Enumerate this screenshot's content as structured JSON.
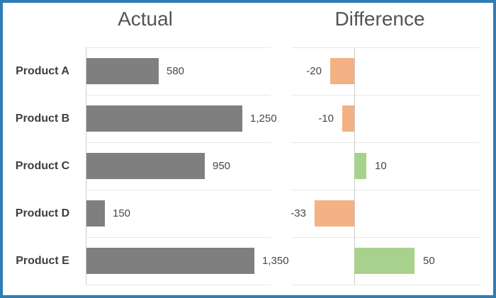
{
  "chart": {
    "titles": {
      "actual": "Actual",
      "difference": "Difference"
    },
    "rows": [
      {
        "product": "Product A",
        "actual_value": 580,
        "actual_label": "580",
        "diff_value": -20,
        "diff_label": "-20"
      },
      {
        "product": "Product B",
        "actual_value": 1250,
        "actual_label": "1,250",
        "diff_value": -10,
        "diff_label": "-10"
      },
      {
        "product": "Product C",
        "actual_value": 950,
        "actual_label": "950",
        "diff_value": 10,
        "diff_label": "10"
      },
      {
        "product": "Product D",
        "actual_value": 150,
        "actual_label": "150",
        "diff_value": -33,
        "diff_label": "-33"
      },
      {
        "product": "Product E",
        "actual_value": 1350,
        "actual_label": "1,350",
        "diff_value": 50,
        "diff_label": "50"
      }
    ],
    "colors": {
      "border": "#2e7cb4",
      "actual_bar": "#7f7f7f",
      "negative_bar": "#f4b183",
      "positive_bar": "#a9d18e",
      "title_text": "#545454",
      "label_text": "#3e3e3e",
      "value_text": "#474747",
      "gridline": "#e8e8e8",
      "axis": "#cdcdcd",
      "background": "#ffffff"
    }
  },
  "chart_data": {
    "type": "bar",
    "orientation": "horizontal",
    "title": "",
    "panels": [
      {
        "title": "Actual",
        "categories": [
          "Product A",
          "Product B",
          "Product C",
          "Product D",
          "Product E"
        ],
        "values": [
          580,
          1250,
          950,
          150,
          1350
        ],
        "data_labels": [
          "580",
          "1,250",
          "950",
          "150",
          "1,350"
        ],
        "bar_color": "#7f7f7f",
        "xlim": [
          0,
          1490
        ],
        "grid": true
      },
      {
        "title": "Difference",
        "categories": [
          "Product A",
          "Product B",
          "Product C",
          "Product D",
          "Product E"
        ],
        "values": [
          -20,
          -10,
          10,
          -33,
          50
        ],
        "data_labels": [
          "-20",
          "-10",
          "10",
          "-33",
          "50"
        ],
        "positive_color": "#a9d18e",
        "negative_color": "#f4b183",
        "xlim": [
          -52,
          104
        ],
        "zero_line": true,
        "grid": true
      }
    ],
    "legend": "none"
  }
}
